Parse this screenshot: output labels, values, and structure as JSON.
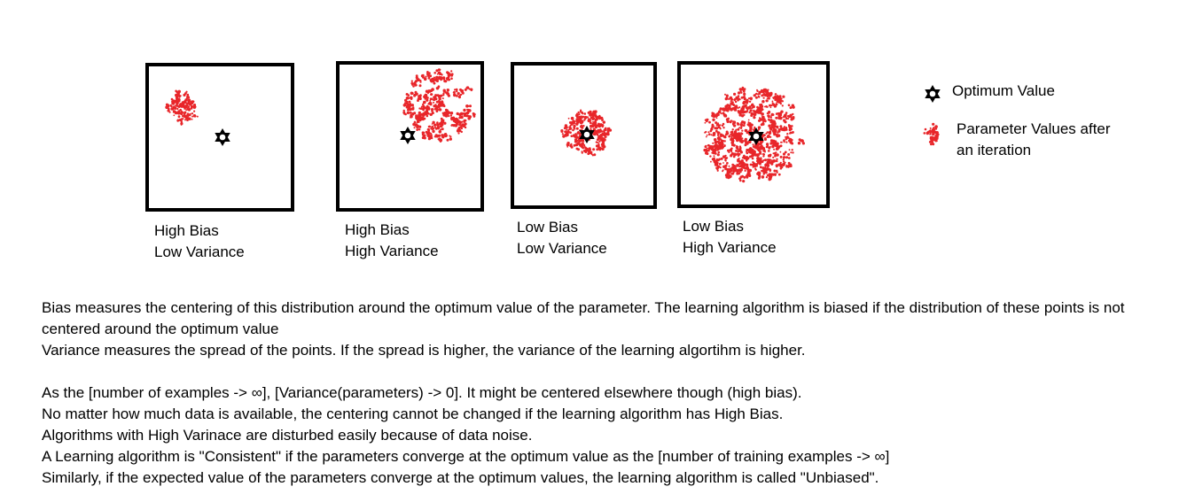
{
  "panels": [
    {
      "line1": "High Bias",
      "line2": "Low Variance"
    },
    {
      "line1": "High Bias",
      "line2": "High Variance"
    },
    {
      "line1": "Low Bias",
      "line2": "Low Variance"
    },
    {
      "line1": "Low Bias",
      "line2": "High Variance"
    }
  ],
  "legend": {
    "optimum": {
      "label": "Optimum Value",
      "icon": "star-icon",
      "color": "#000000"
    },
    "params": {
      "line1": "Parameter Values after",
      "line2": "an iteration",
      "icon": "red-dots-icon",
      "color": "#e8262a"
    }
  },
  "notes": {
    "p1": "Bias measures the centering of this distribution around the optimum value of the parameter. The learning algorithm is biased if the distribution of these points is not centered around the optimum value",
    "p2": "Variance measures the spread of the points. If the spread is higher, the variance of the learning algortihm is higher.",
    "p3": "As the [number of examples -> ∞], [Variance(parameters) -> 0]. It might be centered elsewhere though (high bias).",
    "p4": "No matter how much data is available, the centering cannot be changed if the learning algorithm has High Bias.",
    "p5": "Algorithms with High Varinace are disturbed easily because of data noise.",
    "p6": "A Learning algorithm is \"Consistent\" if the parameters converge at the optimum value as the [number of training examples -> ∞]",
    "p7": "Similarly, if the expected value of the parameters converge at the optimum values, the learning algorithm is called \"Unbiased\"."
  }
}
